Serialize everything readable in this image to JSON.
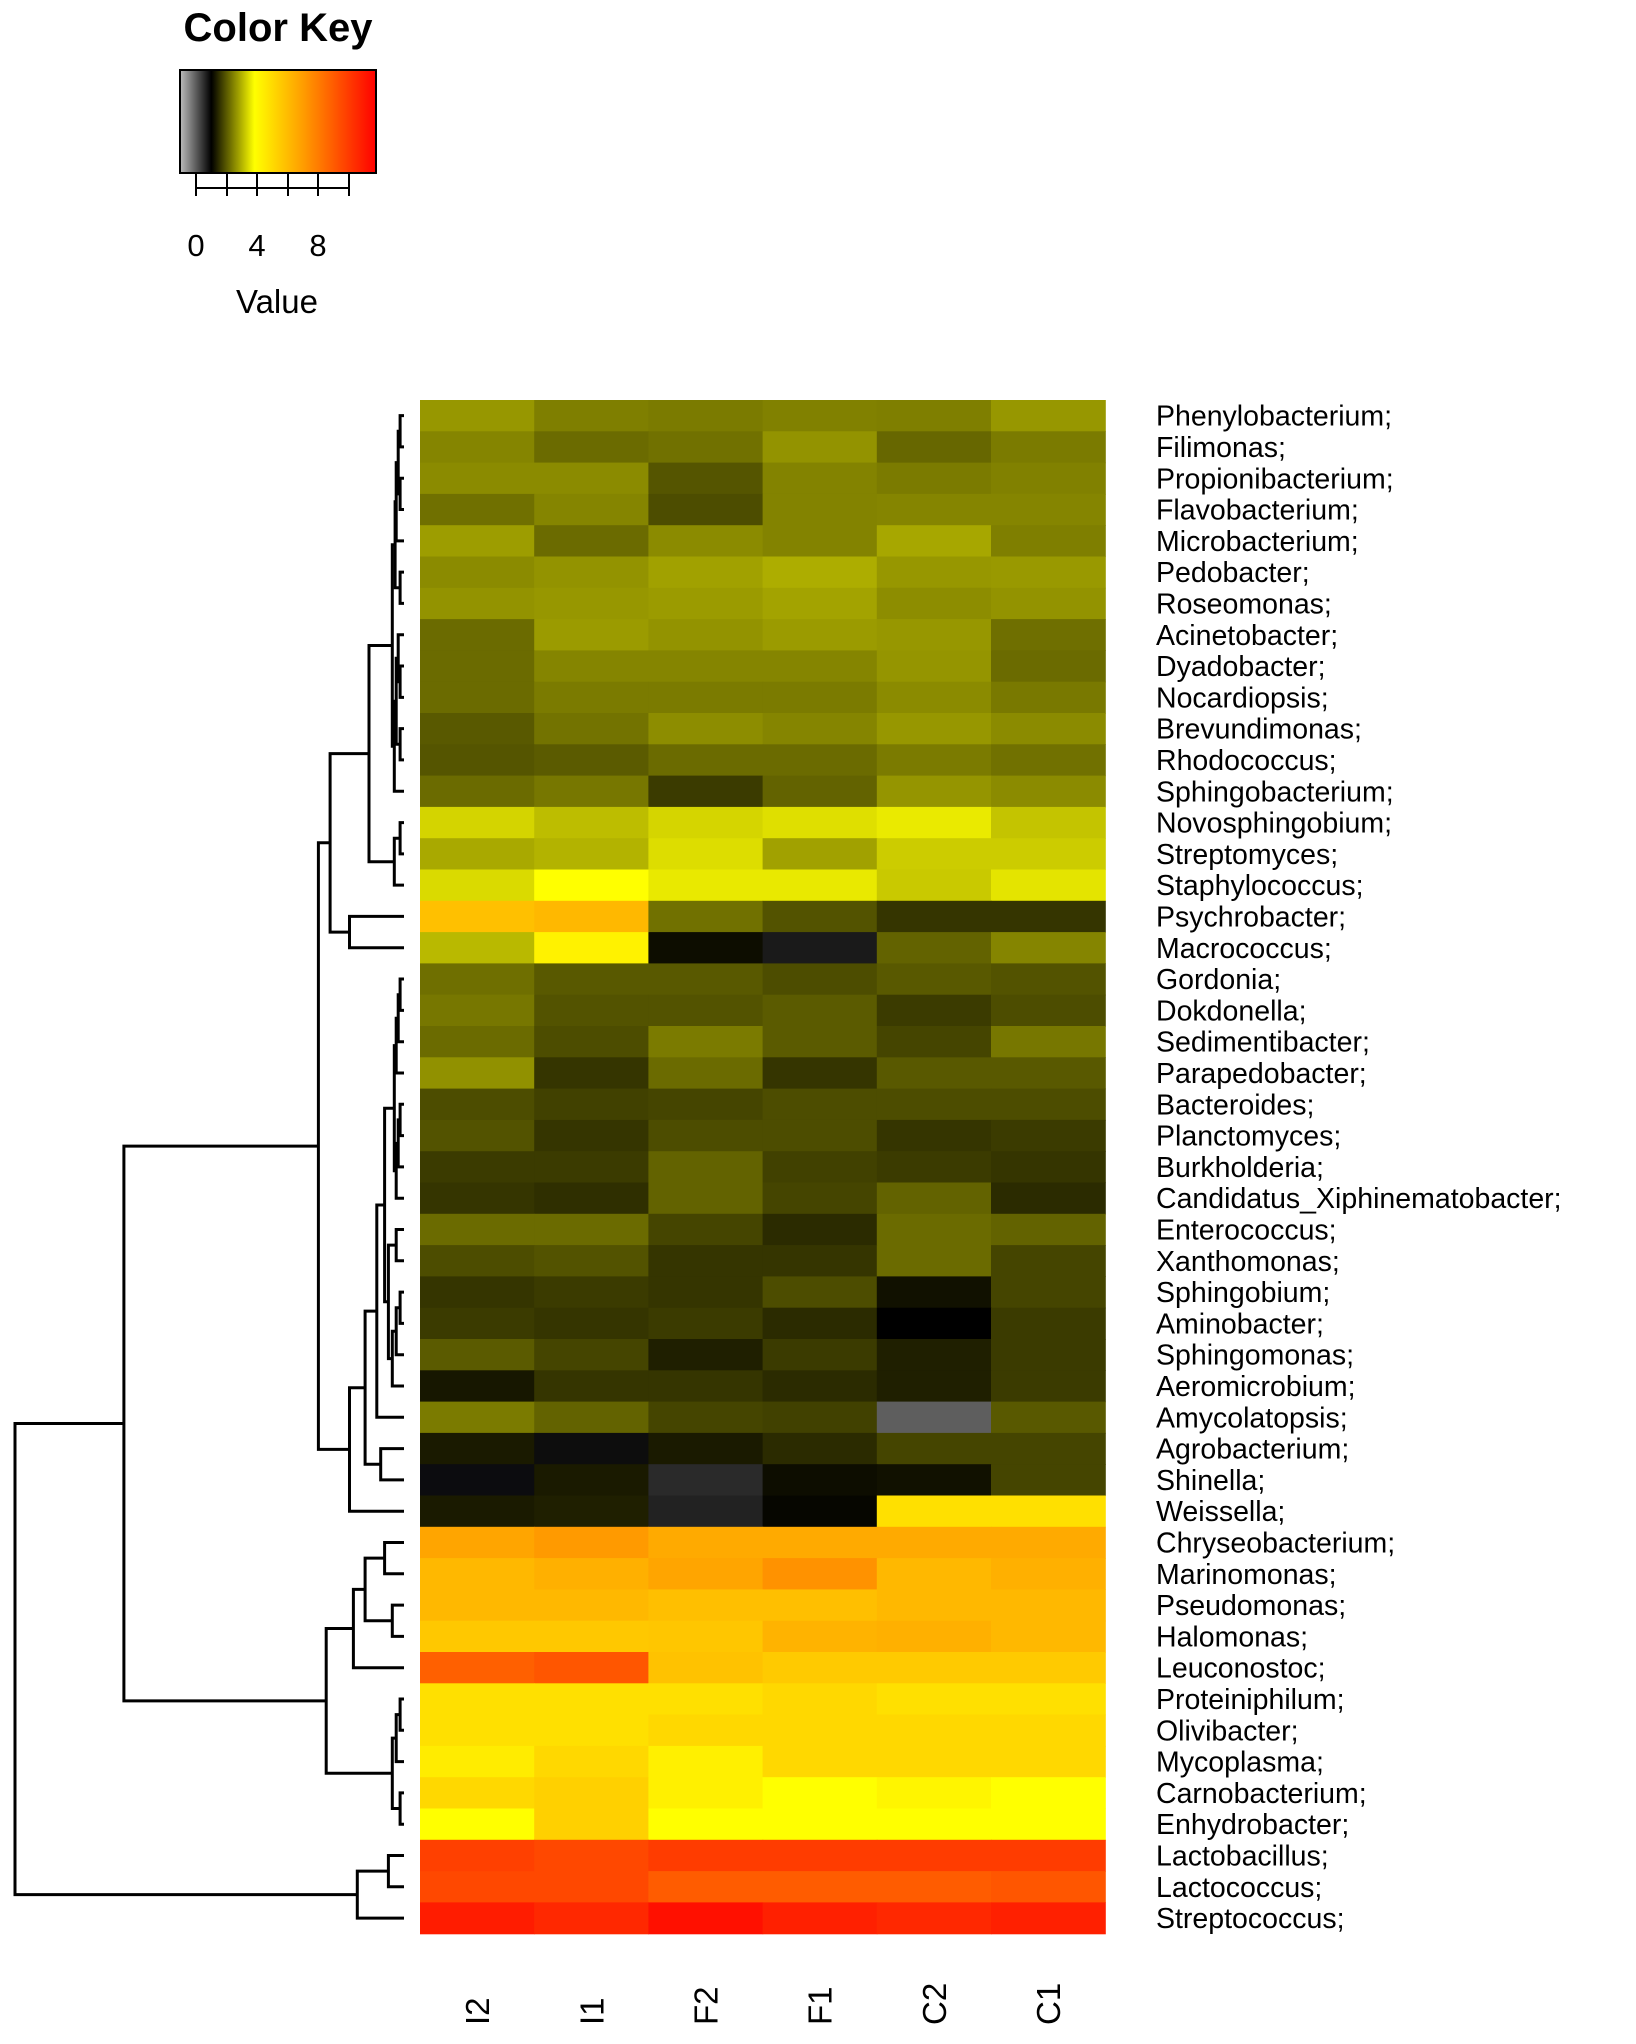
{
  "chart_data": {
    "type": "heatmap",
    "color_key": {
      "title": "Color Key",
      "xlabel": "Value",
      "ticks": [
        "0",
        "4",
        "8"
      ],
      "stops": [
        "#bcbcbc",
        "#000000",
        "#ffff00",
        "#ffa000",
        "#ff0000"
      ]
    },
    "columns": [
      "I2",
      "I1",
      "F2",
      "F1",
      "C2",
      "C1"
    ],
    "rows": [
      "Phenylobacterium;",
      "Filimonas;",
      "Propionibacterium;",
      "Flavobacterium;",
      "Microbacterium;",
      "Pedobacter;",
      "Roseomonas;",
      "Acinetobacter;",
      "Dyadobacter;",
      "Nocardiopsis;",
      "Brevundimonas;",
      "Rhodococcus;",
      "Sphingobacterium;",
      "Novosphingobium;",
      "Streptomyces;",
      "Staphylococcus;",
      "Psychrobacter;",
      "Macrococcus;",
      "Gordonia;",
      "Dokdonella;",
      "Sedimentibacter;",
      "Parapedobacter;",
      "Bacteroides;",
      "Planctomyces;",
      "Burkholderia;",
      "Candidatus_Xiphinematobacter;",
      "Enterococcus;",
      "Xanthomonas;",
      "Sphingobium;",
      "Aminobacter;",
      "Sphingomonas;",
      "Aeromicrobium;",
      "Amycolatopsis;",
      "Agrobacterium;",
      "Shinella;",
      "Weissella;",
      "Chryseobacterium;",
      "Marinomonas;",
      "Pseudomonas;",
      "Halomonas;",
      "Leuconostoc;",
      "Proteiniphilum;",
      "Olivibacter;",
      "Mycoplasma;",
      "Carnobacterium;",
      "Enhydrobacter;",
      "Lactobacillus;",
      "Lactococcus;",
      "Streptococcus;"
    ],
    "cell_colors": [
      [
        "#979700",
        "#7f7f00",
        "#7b7b00",
        "#818100",
        "#7f7f00",
        "#979700"
      ],
      [
        "#858500",
        "#6b6b00",
        "#717100",
        "#939300",
        "#676700",
        "#7b7b00"
      ],
      [
        "#8b8b00",
        "#8b8b00",
        "#555500",
        "#838300",
        "#7b7b00",
        "#818100"
      ],
      [
        "#707000",
        "#858500",
        "#4d4d00",
        "#838300",
        "#858500",
        "#858500"
      ],
      [
        "#9d9d00",
        "#6b6b00",
        "#8b8b00",
        "#838300",
        "#a7a700",
        "#7f7f00"
      ],
      [
        "#8b8b00",
        "#939300",
        "#a1a100",
        "#adad00",
        "#979700",
        "#999900"
      ],
      [
        "#939300",
        "#979700",
        "#9b9b00",
        "#a3a300",
        "#8d8d00",
        "#939300"
      ],
      [
        "#6b6b00",
        "#9b9b00",
        "#939300",
        "#9b9b00",
        "#979700",
        "#6f6f00"
      ],
      [
        "#6b6b00",
        "#858500",
        "#858500",
        "#858500",
        "#959500",
        "#6b6b00"
      ],
      [
        "#6b6b00",
        "#7b7b00",
        "#7b7b00",
        "#7b7b00",
        "#8b8b00",
        "#797900"
      ],
      [
        "#595900",
        "#737300",
        "#8d8d00",
        "#858500",
        "#979700",
        "#8b8b00"
      ],
      [
        "#555500",
        "#5b5b00",
        "#6b6b00",
        "#6b6b00",
        "#7b7b00",
        "#717100"
      ],
      [
        "#6b6b00",
        "#777700",
        "#3b3b00",
        "#636300",
        "#959500",
        "#8b8b00"
      ],
      [
        "#d4d400",
        "#bdbd00",
        "#d5d500",
        "#dfdf00",
        "#eaea00",
        "#c4c400"
      ],
      [
        "#a9a900",
        "#b3b300",
        "#dddd00",
        "#a1a100",
        "#cccc00",
        "#cccc00"
      ],
      [
        "#dada00",
        "#ffff00",
        "#e9e900",
        "#e9e900",
        "#c9c900",
        "#e4e400"
      ],
      [
        "#ffc000",
        "#ffb800",
        "#717100",
        "#535300",
        "#353500",
        "#353500"
      ],
      [
        "#b9b900",
        "#fff200",
        "#0d0d00",
        "#1a1a1a",
        "#636300",
        "#858500"
      ],
      [
        "#6f6f00",
        "#595900",
        "#595900",
        "#4d4d00",
        "#595900",
        "#535300"
      ],
      [
        "#777700",
        "#535300",
        "#535300",
        "#5b5b00",
        "#3b3b00",
        "#4d4d00"
      ],
      [
        "#6b6b00",
        "#4d4d00",
        "#7b7b00",
        "#5b5b00",
        "#454500",
        "#777700"
      ],
      [
        "#919100",
        "#353500",
        "#6b6b00",
        "#353500",
        "#595900",
        "#595900"
      ],
      [
        "#4d4d00",
        "#414100",
        "#454500",
        "#4d4d00",
        "#4d4d00",
        "#4d4d00"
      ],
      [
        "#535300",
        "#353500",
        "#4d4d00",
        "#4d4d00",
        "#353500",
        "#3b3b00"
      ],
      [
        "#3b3b00",
        "#3b3b00",
        "#636300",
        "#414100",
        "#3b3b00",
        "#353500"
      ],
      [
        "#353500",
        "#2f2f00",
        "#636300",
        "#454500",
        "#636300",
        "#2b2b00"
      ],
      [
        "#6b6b00",
        "#6b6b00",
        "#454500",
        "#2b2b00",
        "#6b6b00",
        "#636300"
      ],
      [
        "#4d4d00",
        "#535300",
        "#353500",
        "#353500",
        "#6b6b00",
        "#454500"
      ],
      [
        "#353500",
        "#3b3b00",
        "#353500",
        "#4d4d00",
        "#111100",
        "#454500"
      ],
      [
        "#3b3b00",
        "#353500",
        "#3b3b00",
        "#2b2b00",
        "#000000",
        "#3b3b00"
      ],
      [
        "#5b5b00",
        "#454500",
        "#1f1f00",
        "#3b3b00",
        "#1f1f00",
        "#3b3b00"
      ],
      [
        "#171700",
        "#353500",
        "#353500",
        "#2b2b00",
        "#1f1f00",
        "#3b3b00"
      ],
      [
        "#7b7b00",
        "#636300",
        "#454500",
        "#414100",
        "#5e5e5e",
        "#595900"
      ],
      [
        "#1a1a00",
        "#0d0d0d",
        "#1a1a00",
        "#2b2b00",
        "#454500",
        "#454500"
      ],
      [
        "#0c0c0f",
        "#1a1a00",
        "#2a2a2a",
        "#0d0d00",
        "#111100",
        "#454500"
      ],
      [
        "#1a1a00",
        "#1f1f00",
        "#222222",
        "#060600",
        "#ffe000",
        "#ffe000"
      ],
      [
        "#ffa500",
        "#ff9a00",
        "#ffaa00",
        "#ffaa00",
        "#ffaa00",
        "#ffaa00"
      ],
      [
        "#ffb800",
        "#ffb000",
        "#ffa500",
        "#ff9200",
        "#ffb800",
        "#ffb000"
      ],
      [
        "#ffb800",
        "#ffb800",
        "#ffbf00",
        "#ffbf00",
        "#ffb800",
        "#ffb800"
      ],
      [
        "#ffc800",
        "#ffc800",
        "#ffc600",
        "#ffb300",
        "#ffb000",
        "#ffb800"
      ],
      [
        "#ff6000",
        "#ff5600",
        "#ffc200",
        "#ffca00",
        "#ffca00",
        "#ffca00"
      ],
      [
        "#ffe000",
        "#ffe000",
        "#ffe000",
        "#ffd800",
        "#ffe000",
        "#ffe000"
      ],
      [
        "#ffe000",
        "#ffe000",
        "#ffd800",
        "#ffd800",
        "#ffd800",
        "#ffd800"
      ],
      [
        "#ffec00",
        "#ffd800",
        "#fff000",
        "#ffd800",
        "#ffd800",
        "#ffd800"
      ],
      [
        "#ffd800",
        "#ffd000",
        "#fff000",
        "#ffff00",
        "#fff500",
        "#ffff00"
      ],
      [
        "#ffff00",
        "#ffd000",
        "#ffff00",
        "#ffff00",
        "#ffff00",
        "#ffff00"
      ],
      [
        "#ff4000",
        "#ff4800",
        "#ff3c00",
        "#ff3c00",
        "#ff3c00",
        "#ff3c00"
      ],
      [
        "#ff4800",
        "#ff4800",
        "#ff5c00",
        "#ff5c00",
        "#ff5c00",
        "#ff5600"
      ],
      [
        "#ff1c00",
        "#ff2800",
        "#ff1000",
        "#ff2000",
        "#ff2800",
        "#ff2000"
      ]
    ]
  }
}
